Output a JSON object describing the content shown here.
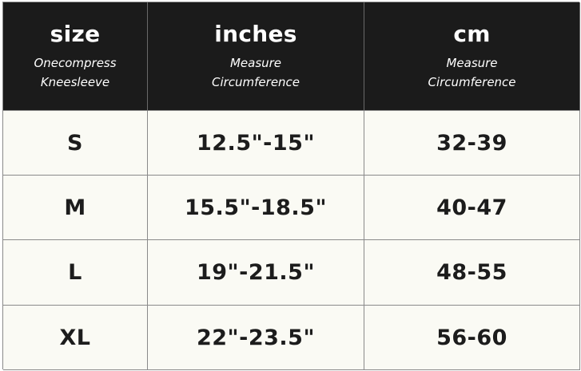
{
  "table": {
    "columns": [
      {
        "title": "size",
        "subtitle_lines": [
          "Onecompress",
          "Kneesleeve"
        ]
      },
      {
        "title": "inches",
        "subtitle_lines": [
          "Measure",
          "Circumference"
        ]
      },
      {
        "title": "cm",
        "subtitle_lines": [
          "Measure",
          "Circumference"
        ]
      }
    ],
    "rows": [
      [
        "S",
        "12.5\"-15\"",
        "32-39"
      ],
      [
        "M",
        "15.5\"-18.5\"",
        "40-47"
      ],
      [
        "L",
        "19\"-21.5\"",
        "48-55"
      ],
      [
        "XL",
        "22\"-23.5\"",
        "56-60"
      ]
    ]
  }
}
